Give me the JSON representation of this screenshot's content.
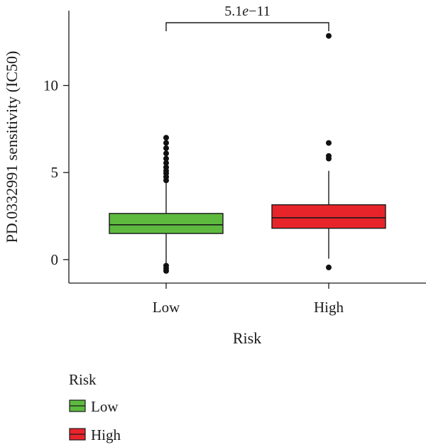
{
  "chart_data": {
    "type": "box",
    "title": "",
    "xlabel": "Risk",
    "ylabel": "PD.0332991 sensitivity (IC50)",
    "ylim": [
      -1.35,
      14.3
    ],
    "yticks": [
      0,
      5,
      10
    ],
    "categories": [
      "Low",
      "High"
    ],
    "series": [
      {
        "name": "Low",
        "color": "#5dba3f",
        "q1": 1.5,
        "median": 2.0,
        "q3": 2.65,
        "whisker_low": -0.3,
        "whisker_high": 4.4,
        "outliers": [
          4.55,
          4.75,
          4.95,
          5.1,
          5.3,
          5.55,
          5.8,
          6.1,
          6.4,
          6.7,
          7.0,
          -0.35,
          -0.5,
          -0.65
        ]
      },
      {
        "name": "High",
        "color": "#e8242b",
        "q1": 1.8,
        "median": 2.4,
        "q3": 3.15,
        "whisker_low": 0.05,
        "whisker_high": 5.1,
        "outliers": [
          5.8,
          5.95,
          6.7,
          12.85,
          -0.45
        ]
      }
    ],
    "comparison": {
      "from": "Low",
      "to": "High",
      "label": "5.1e−11",
      "label_prefix": "5.1",
      "label_italic": "e",
      "label_suffix": "−11"
    },
    "legend": {
      "title": "Risk",
      "position": "bottom-left",
      "items": [
        {
          "label": "Low",
          "color": "#5dba3f"
        },
        {
          "label": "High",
          "color": "#e8242b"
        }
      ]
    }
  }
}
